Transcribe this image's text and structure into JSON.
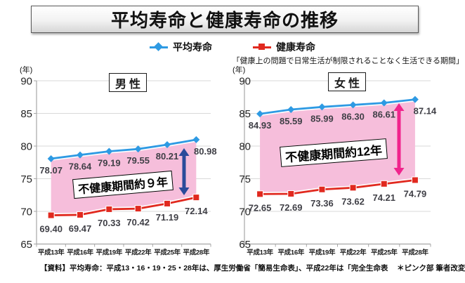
{
  "title": "平均寿命と健康寿命の推移",
  "legend": {
    "avg_label": "平均寿命",
    "healthy_label": "健康寿命",
    "note": "「健康上の問題で日常生活が制限されることなく生活できる期間」"
  },
  "unit_label": "(年)",
  "colors": {
    "avg": "#2E9AE3",
    "healthy": "#E1291F",
    "band": "#F6BEDB",
    "arrow_male": "#2B4B9B",
    "arrow_female": "#F0248C",
    "grid": "#D9D9D9",
    "axis": "#A6A6A6",
    "value_label": "#3F3F46"
  },
  "footer": {
    "source": "【資料】平均寿命：平成13・16・19・25・28年は、厚生労働省「簡易生命表」、平成22年は「完全生命表",
    "note": "＊ピンク部 筆者改変"
  },
  "chart_data": [
    {
      "type": "line",
      "title": "男性",
      "categories": [
        "平成13年",
        "平成16年",
        "平成19年",
        "平成22年",
        "平成25年",
        "平成28年"
      ],
      "series": [
        {
          "name": "平均寿命",
          "values": [
            78.07,
            78.64,
            79.19,
            79.55,
            80.21,
            80.98
          ]
        },
        {
          "name": "健康寿命",
          "values": [
            69.4,
            69.47,
            70.33,
            70.42,
            71.19,
            72.14
          ]
        }
      ],
      "ylim": [
        65,
        90
      ],
      "yticks": [
        65,
        70,
        75,
        80,
        85,
        90
      ],
      "grid": true,
      "annotation": "不健康期間約９年"
    },
    {
      "type": "line",
      "title": "女性",
      "categories": [
        "平成13年",
        "平成16年",
        "平成19年",
        "平成22年",
        "平成25年",
        "平成28年"
      ],
      "series": [
        {
          "name": "平均寿命",
          "values": [
            84.93,
            85.59,
            85.99,
            86.3,
            86.61,
            87.14
          ]
        },
        {
          "name": "健康寿命",
          "values": [
            72.65,
            72.69,
            73.36,
            73.62,
            74.21,
            74.79
          ]
        }
      ],
      "ylim": [
        65,
        90
      ],
      "yticks": [
        65,
        70,
        75,
        80,
        85,
        90
      ],
      "grid": true,
      "annotation": "不健康期間約12年"
    }
  ]
}
